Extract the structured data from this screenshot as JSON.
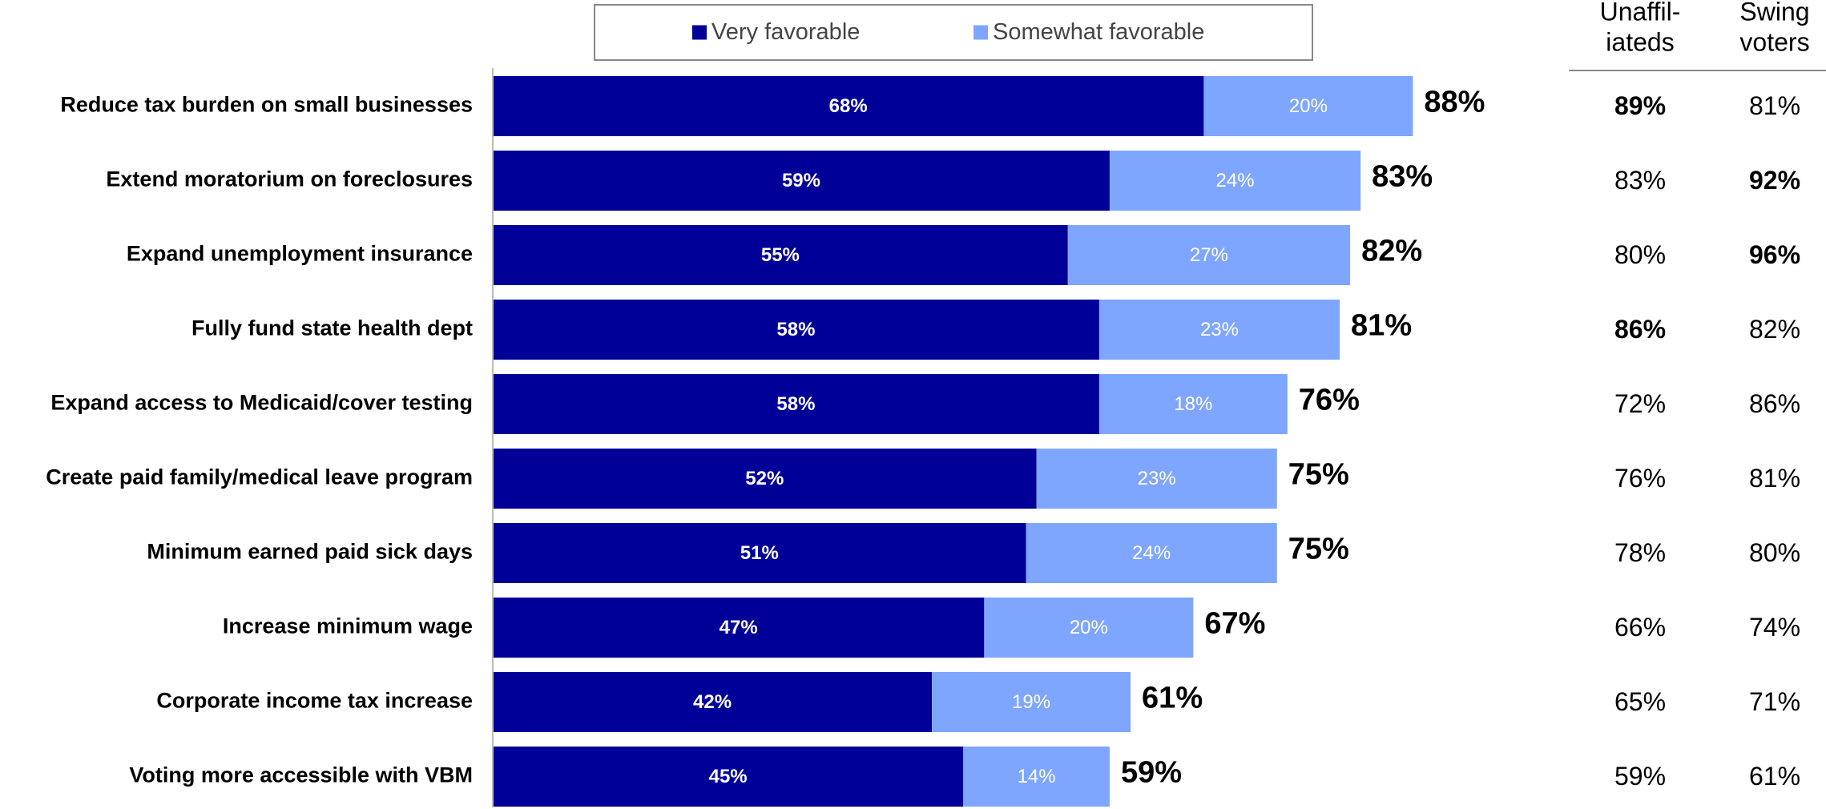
{
  "chart_data": {
    "type": "bar",
    "orientation": "horizontal",
    "stacked": true,
    "xlim": [
      0,
      100
    ],
    "categories": [
      "Reduce tax burden on small businesses",
      "Extend moratorium on foreclosures",
      "Expand unemployment insurance",
      "Fully fund state health dept",
      "Expand access to Medicaid/cover testing",
      "Create paid family/medical leave program",
      "Minimum earned paid sick days",
      "Increase minimum wage",
      "Corporate income tax increase",
      "Voting more accessible with VBM"
    ],
    "series": [
      {
        "name": "Very favorable",
        "color": "#000099",
        "values": [
          68,
          59,
          55,
          58,
          58,
          52,
          51,
          47,
          42,
          45
        ],
        "labels": [
          "68%",
          "59%",
          "55%",
          "58%",
          "58%",
          "52%",
          "51%",
          "47%",
          "42%",
          "45%"
        ]
      },
      {
        "name": "Somewhat favorable",
        "color": "#7FA6FF",
        "values": [
          20,
          24,
          27,
          23,
          18,
          23,
          24,
          20,
          19,
          14
        ],
        "labels": [
          "20%",
          "24%",
          "27%",
          "23%",
          "18%",
          "23%",
          "24%",
          "20%",
          "19%",
          "14%"
        ]
      }
    ],
    "totals": [
      "88%",
      "83%",
      "82%",
      "81%",
      "76%",
      "75%",
      "75%",
      "67%",
      "61%",
      "59%"
    ],
    "legend_position": "top",
    "grid": false,
    "side_table": {
      "columns": [
        {
          "header_lines": [
            "Unaffil-",
            "iateds"
          ],
          "values": [
            "89%",
            "83%",
            "80%",
            "86%",
            "72%",
            "76%",
            "78%",
            "66%",
            "65%",
            "59%"
          ],
          "highlight": [
            true,
            false,
            false,
            true,
            false,
            false,
            false,
            false,
            false,
            false
          ]
        },
        {
          "header_lines": [
            "Swing",
            "voters"
          ],
          "values": [
            "81%",
            "92%",
            "96%",
            "82%",
            "86%",
            "81%",
            "80%",
            "74%",
            "71%",
            "61%"
          ],
          "highlight": [
            false,
            true,
            true,
            false,
            false,
            false,
            false,
            false,
            false,
            false
          ]
        }
      ],
      "highlight_color": "#000099"
    }
  }
}
